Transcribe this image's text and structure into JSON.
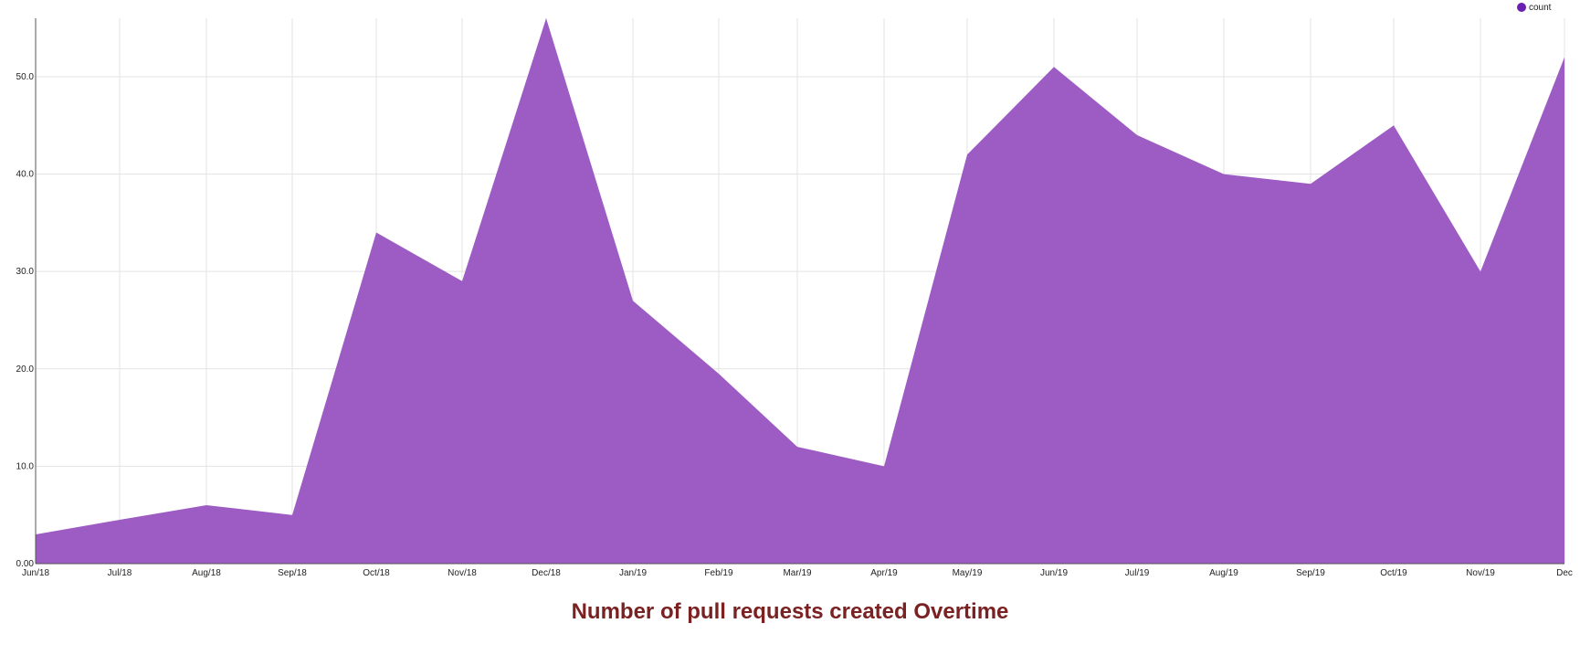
{
  "chart_data": {
    "type": "area",
    "title": "Number of pull requests created Overtime",
    "xlabel": "",
    "ylabel": "",
    "x": [
      "Jun/18",
      "Jul/18",
      "Aug/18",
      "Sep/18",
      "Oct/18",
      "Nov/18",
      "Dec/18",
      "Jan/19",
      "Feb/19",
      "Mar/19",
      "Apr/19",
      "May/19",
      "Jun/19",
      "Jul/19",
      "Aug/19",
      "Sep/19",
      "Oct/19",
      "Nov/19",
      "Dec"
    ],
    "series": [
      {
        "name": "count",
        "values": [
          3,
          4.5,
          6,
          5,
          34,
          29,
          56,
          27,
          19.5,
          12,
          10,
          42,
          51,
          44,
          40,
          39,
          45,
          30,
          52
        ]
      }
    ],
    "ylim": [
      0,
      56
    ],
    "yticks": [
      "0.00",
      "10.0",
      "20.0",
      "30.0",
      "40.0",
      "50.0"
    ],
    "ytick_values": [
      0,
      10,
      20,
      30,
      40,
      50
    ],
    "grid": true,
    "legend_position": "top-right",
    "colors": {
      "area": "#9b59c3",
      "legend_marker": "#6a1fb0",
      "axis": "#555555",
      "grid": "#e3e3e3",
      "title": "#7a2222"
    }
  }
}
